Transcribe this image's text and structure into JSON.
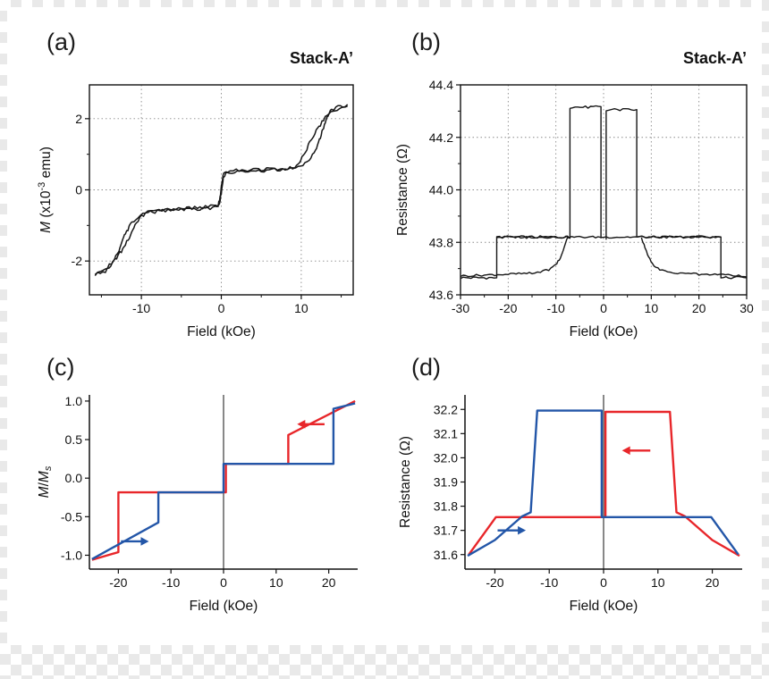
{
  "panels": [
    {
      "id": "a",
      "label": "(a)",
      "title": "Stack-A’"
    },
    {
      "id": "b",
      "label": "(b)",
      "title": "Stack-A’"
    },
    {
      "id": "c",
      "label": "(c)",
      "title": ""
    },
    {
      "id": "d",
      "label": "(d)",
      "title": ""
    }
  ],
  "colors": {
    "curve_black": "#161616",
    "sweep_red": "#e8262a",
    "sweep_blue": "#2356a8"
  },
  "chart_data": [
    {
      "id": "a",
      "type": "line",
      "title": "Stack-A’",
      "xlabel": [
        {
          "text": "Field (kOe)"
        }
      ],
      "ylabel": [
        {
          "text": "M",
          "italic": true
        },
        {
          "text": " (x10"
        },
        {
          "text": "-3",
          "sup": true
        },
        {
          "text": " emu)"
        }
      ],
      "x_range": [
        -16.5,
        16.5
      ],
      "y_range": [
        -2.95,
        2.95
      ],
      "x_ticks": {
        "values": [
          -10,
          0,
          10
        ],
        "labels": [
          "-10",
          "0",
          "10"
        ]
      },
      "y_ticks": {
        "values": [
          -2,
          0,
          2
        ],
        "labels": [
          "-2",
          "0",
          "2"
        ]
      },
      "x_minor": [
        -15,
        -5,
        5,
        15
      ],
      "y_minor": [
        -1,
        1
      ],
      "grid": true,
      "frame": "box",
      "zero_line": false,
      "series": [
        {
          "name": "sweep-up",
          "color": "#161616",
          "width": 1.5,
          "noise": 0.05,
          "points": [
            [
              -15.8,
              -2.38
            ],
            [
              -14.5,
              -2.22
            ],
            [
              -13.5,
              -2.02
            ],
            [
              -12.5,
              -1.72
            ],
            [
              -11.5,
              -1.32
            ],
            [
              -10.8,
              -1.0
            ],
            [
              -10.2,
              -0.8
            ],
            [
              -9.5,
              -0.66
            ],
            [
              -8.5,
              -0.6
            ],
            [
              -6,
              -0.56
            ],
            [
              -3,
              -0.5
            ],
            [
              -1,
              -0.47
            ],
            [
              -0.4,
              -0.44
            ],
            [
              -0.15,
              -0.2
            ],
            [
              0.05,
              0.2
            ],
            [
              0.3,
              0.45
            ],
            [
              0.7,
              0.53
            ],
            [
              1.5,
              0.55
            ],
            [
              4,
              0.57
            ],
            [
              7,
              0.59
            ],
            [
              9,
              0.62
            ],
            [
              10.2,
              0.68
            ],
            [
              11,
              0.82
            ],
            [
              11.8,
              1.1
            ],
            [
              12.5,
              1.55
            ],
            [
              13.2,
              2.02
            ],
            [
              13.8,
              2.25
            ],
            [
              14.6,
              2.34
            ],
            [
              15.8,
              2.4
            ]
          ]
        },
        {
          "name": "sweep-down",
          "color": "#161616",
          "width": 1.5,
          "noise": 0.05,
          "points": [
            [
              15.8,
              2.4
            ],
            [
              14.5,
              2.27
            ],
            [
              13.2,
              2.08
            ],
            [
              12.2,
              1.78
            ],
            [
              11.2,
              1.38
            ],
            [
              10.4,
              1.02
            ],
            [
              9.8,
              0.78
            ],
            [
              9.2,
              0.64
            ],
            [
              8,
              0.58
            ],
            [
              5,
              0.54
            ],
            [
              2,
              0.5
            ],
            [
              0.6,
              0.46
            ],
            [
              0.25,
              0.3
            ],
            [
              0,
              -0.1
            ],
            [
              -0.3,
              -0.42
            ],
            [
              -0.8,
              -0.5
            ],
            [
              -2,
              -0.53
            ],
            [
              -5,
              -0.57
            ],
            [
              -8,
              -0.6
            ],
            [
              -9.5,
              -0.65
            ],
            [
              -10.4,
              -0.74
            ],
            [
              -11.2,
              -0.92
            ],
            [
              -12,
              -1.22
            ],
            [
              -12.8,
              -1.68
            ],
            [
              -13.6,
              -2.06
            ],
            [
              -14.5,
              -2.28
            ],
            [
              -15.8,
              -2.38
            ]
          ]
        }
      ],
      "arrows": []
    },
    {
      "id": "b",
      "type": "line",
      "title": "Stack-A’",
      "xlabel": [
        {
          "text": "Field (kOe)"
        }
      ],
      "ylabel": [
        {
          "text": "Resistance (Ω)"
        }
      ],
      "x_range": [
        -30,
        30
      ],
      "y_range": [
        43.6,
        44.4
      ],
      "x_ticks": {
        "values": [
          -30,
          -20,
          -10,
          0,
          10,
          20,
          30
        ],
        "labels": [
          "-30",
          "-20",
          "-10",
          "0",
          "10",
          "20",
          "30"
        ]
      },
      "y_ticks": {
        "values": [
          43.6,
          43.8,
          44.0,
          44.2,
          44.4
        ],
        "labels": [
          "43.6",
          "43.8",
          "44.0",
          "44.2",
          "44.4"
        ]
      },
      "x_minor": [
        -25,
        -15,
        -5,
        5,
        15,
        25
      ],
      "y_minor": [
        43.7,
        43.9,
        44.1,
        44.3
      ],
      "grid": true,
      "frame": "box",
      "zero_line": false,
      "series": [
        {
          "name": "step-sweep-left",
          "color": "#161616",
          "width": 1.4,
          "noise": 0.005,
          "points": [
            [
              -30,
              43.665
            ],
            [
              -22.4,
              43.665
            ],
            [
              -22.4,
              43.82
            ],
            [
              -7.05,
              43.82
            ],
            [
              -7.05,
              44.315
            ],
            [
              -0.55,
              44.315
            ],
            [
              -0.55,
              43.815
            ]
          ]
        },
        {
          "name": "step-sweep-right",
          "color": "#161616",
          "width": 1.4,
          "noise": 0.005,
          "points": [
            [
              0.55,
              43.815
            ],
            [
              0.55,
              44.305
            ],
            [
              6.95,
              44.305
            ],
            [
              6.95,
              43.82
            ],
            [
              24.6,
              43.82
            ],
            [
              24.6,
              43.665
            ],
            [
              30,
              43.665
            ]
          ]
        },
        {
          "name": "mid-plateau",
          "color": "#161616",
          "width": 1.4,
          "noise": 0.004,
          "points": [
            [
              -22.4,
              43.82
            ],
            [
              24.6,
              43.82
            ]
          ]
        },
        {
          "name": "gradual-rise-left",
          "color": "#161616",
          "width": 1.4,
          "noise": 0.004,
          "points": [
            [
              -30,
              43.672
            ],
            [
              -15,
              43.682
            ],
            [
              -11.5,
              43.696
            ],
            [
              -9.8,
              43.718
            ],
            [
              -8.8,
              43.752
            ],
            [
              -8.1,
              43.792
            ],
            [
              -7.55,
              43.818
            ]
          ]
        },
        {
          "name": "gradual-rise-right",
          "color": "#161616",
          "width": 1.4,
          "noise": 0.004,
          "points": [
            [
              30,
              43.672
            ],
            [
              15,
              43.682
            ],
            [
              11.8,
              43.696
            ],
            [
              10.2,
              43.718
            ],
            [
              9.2,
              43.752
            ],
            [
              8.5,
              43.792
            ],
            [
              7.95,
              43.818
            ]
          ]
        }
      ],
      "arrows": []
    },
    {
      "id": "c",
      "type": "line",
      "title": "",
      "xlabel": [
        {
          "text": "Field (kOe)"
        }
      ],
      "ylabel": [
        {
          "text": "M",
          "italic": true
        },
        {
          "text": "/"
        },
        {
          "text": "M",
          "italic": true
        },
        {
          "text": "s",
          "sub": true,
          "italic": true
        }
      ],
      "x_range": [
        -25.5,
        25.5
      ],
      "y_range": [
        -1.18,
        1.08
      ],
      "x_ticks": {
        "values": [
          -20,
          -10,
          0,
          10,
          20
        ],
        "labels": [
          "-20",
          "-10",
          "0",
          "10",
          "20"
        ]
      },
      "y_ticks": {
        "values": [
          -1.0,
          -0.5,
          0.0,
          0.5,
          1.0
        ],
        "labels": [
          "-1.0",
          "-0.5",
          "0.0",
          "0.5",
          "1.0"
        ]
      },
      "grid": false,
      "frame": "axes",
      "zero_line": true,
      "series": [
        {
          "name": "decreasing-sweep-red",
          "color": "#e8262a",
          "width": 2.4,
          "points": [
            [
              25,
              1.0
            ],
            [
              12.3,
              0.56
            ],
            [
              12.3,
              0.185
            ],
            [
              0.45,
              0.185
            ],
            [
              0.45,
              -0.185
            ],
            [
              -20,
              -0.185
            ],
            [
              -20,
              -0.96
            ],
            [
              -25,
              -1.06
            ]
          ]
        },
        {
          "name": "increasing-sweep-blue",
          "color": "#2356a8",
          "width": 2.4,
          "points": [
            [
              -25,
              -1.05
            ],
            [
              -12.4,
              -0.575
            ],
            [
              -12.4,
              -0.185
            ],
            [
              0,
              -0.185
            ],
            [
              0,
              0.185
            ],
            [
              20.9,
              0.185
            ],
            [
              20.9,
              0.9
            ],
            [
              25,
              0.97
            ]
          ]
        }
      ],
      "arrows": [
        {
          "x_from": 19.2,
          "x_to": 14.0,
          "y": 0.7,
          "color": "#e8262a"
        },
        {
          "x_from": -19.5,
          "x_to": -14.2,
          "y": -0.82,
          "color": "#2356a8"
        }
      ]
    },
    {
      "id": "d",
      "type": "line",
      "title": "",
      "xlabel": [
        {
          "text": "Field (kOe)"
        }
      ],
      "ylabel": [
        {
          "text": "Resistance (Ω)"
        }
      ],
      "x_range": [
        -25.5,
        25.5
      ],
      "y_range": [
        31.54,
        32.26
      ],
      "x_ticks": {
        "values": [
          -20,
          -10,
          0,
          10,
          20
        ],
        "labels": [
          "-20",
          "-10",
          "0",
          "10",
          "20"
        ]
      },
      "y_ticks": {
        "values": [
          31.6,
          31.7,
          31.8,
          31.9,
          32.0,
          32.1,
          32.2
        ],
        "labels": [
          "31.6",
          "31.7",
          "31.8",
          "31.9",
          "32.0",
          "32.1",
          "32.2"
        ]
      },
      "grid": false,
      "frame": "axes",
      "zero_line": true,
      "series": [
        {
          "name": "decreasing-sweep-red",
          "color": "#e8262a",
          "width": 2.4,
          "points": [
            [
              25,
              31.595
            ],
            [
              20,
              31.66
            ],
            [
              15,
              31.758
            ],
            [
              13.4,
              31.775
            ],
            [
              12.2,
              32.19
            ],
            [
              0.35,
              32.19
            ],
            [
              0.35,
              31.755
            ],
            [
              -19.8,
              31.755
            ],
            [
              -24.8,
              31.6
            ]
          ]
        },
        {
          "name": "increasing-sweep-blue",
          "color": "#2356a8",
          "width": 2.4,
          "points": [
            [
              -25,
              31.595
            ],
            [
              -20,
              31.66
            ],
            [
              -15,
              31.758
            ],
            [
              -13.4,
              31.775
            ],
            [
              -12.2,
              32.195
            ],
            [
              -0.35,
              32.195
            ],
            [
              -0.35,
              31.755
            ],
            [
              19.8,
              31.755
            ],
            [
              24.8,
              31.6
            ]
          ]
        }
      ],
      "arrows": [
        {
          "x_from": 8.6,
          "x_to": 3.4,
          "y": 32.03,
          "color": "#e8262a"
        },
        {
          "x_from": -19.5,
          "x_to": -14.3,
          "y": 31.7,
          "color": "#2356a8"
        }
      ]
    }
  ]
}
